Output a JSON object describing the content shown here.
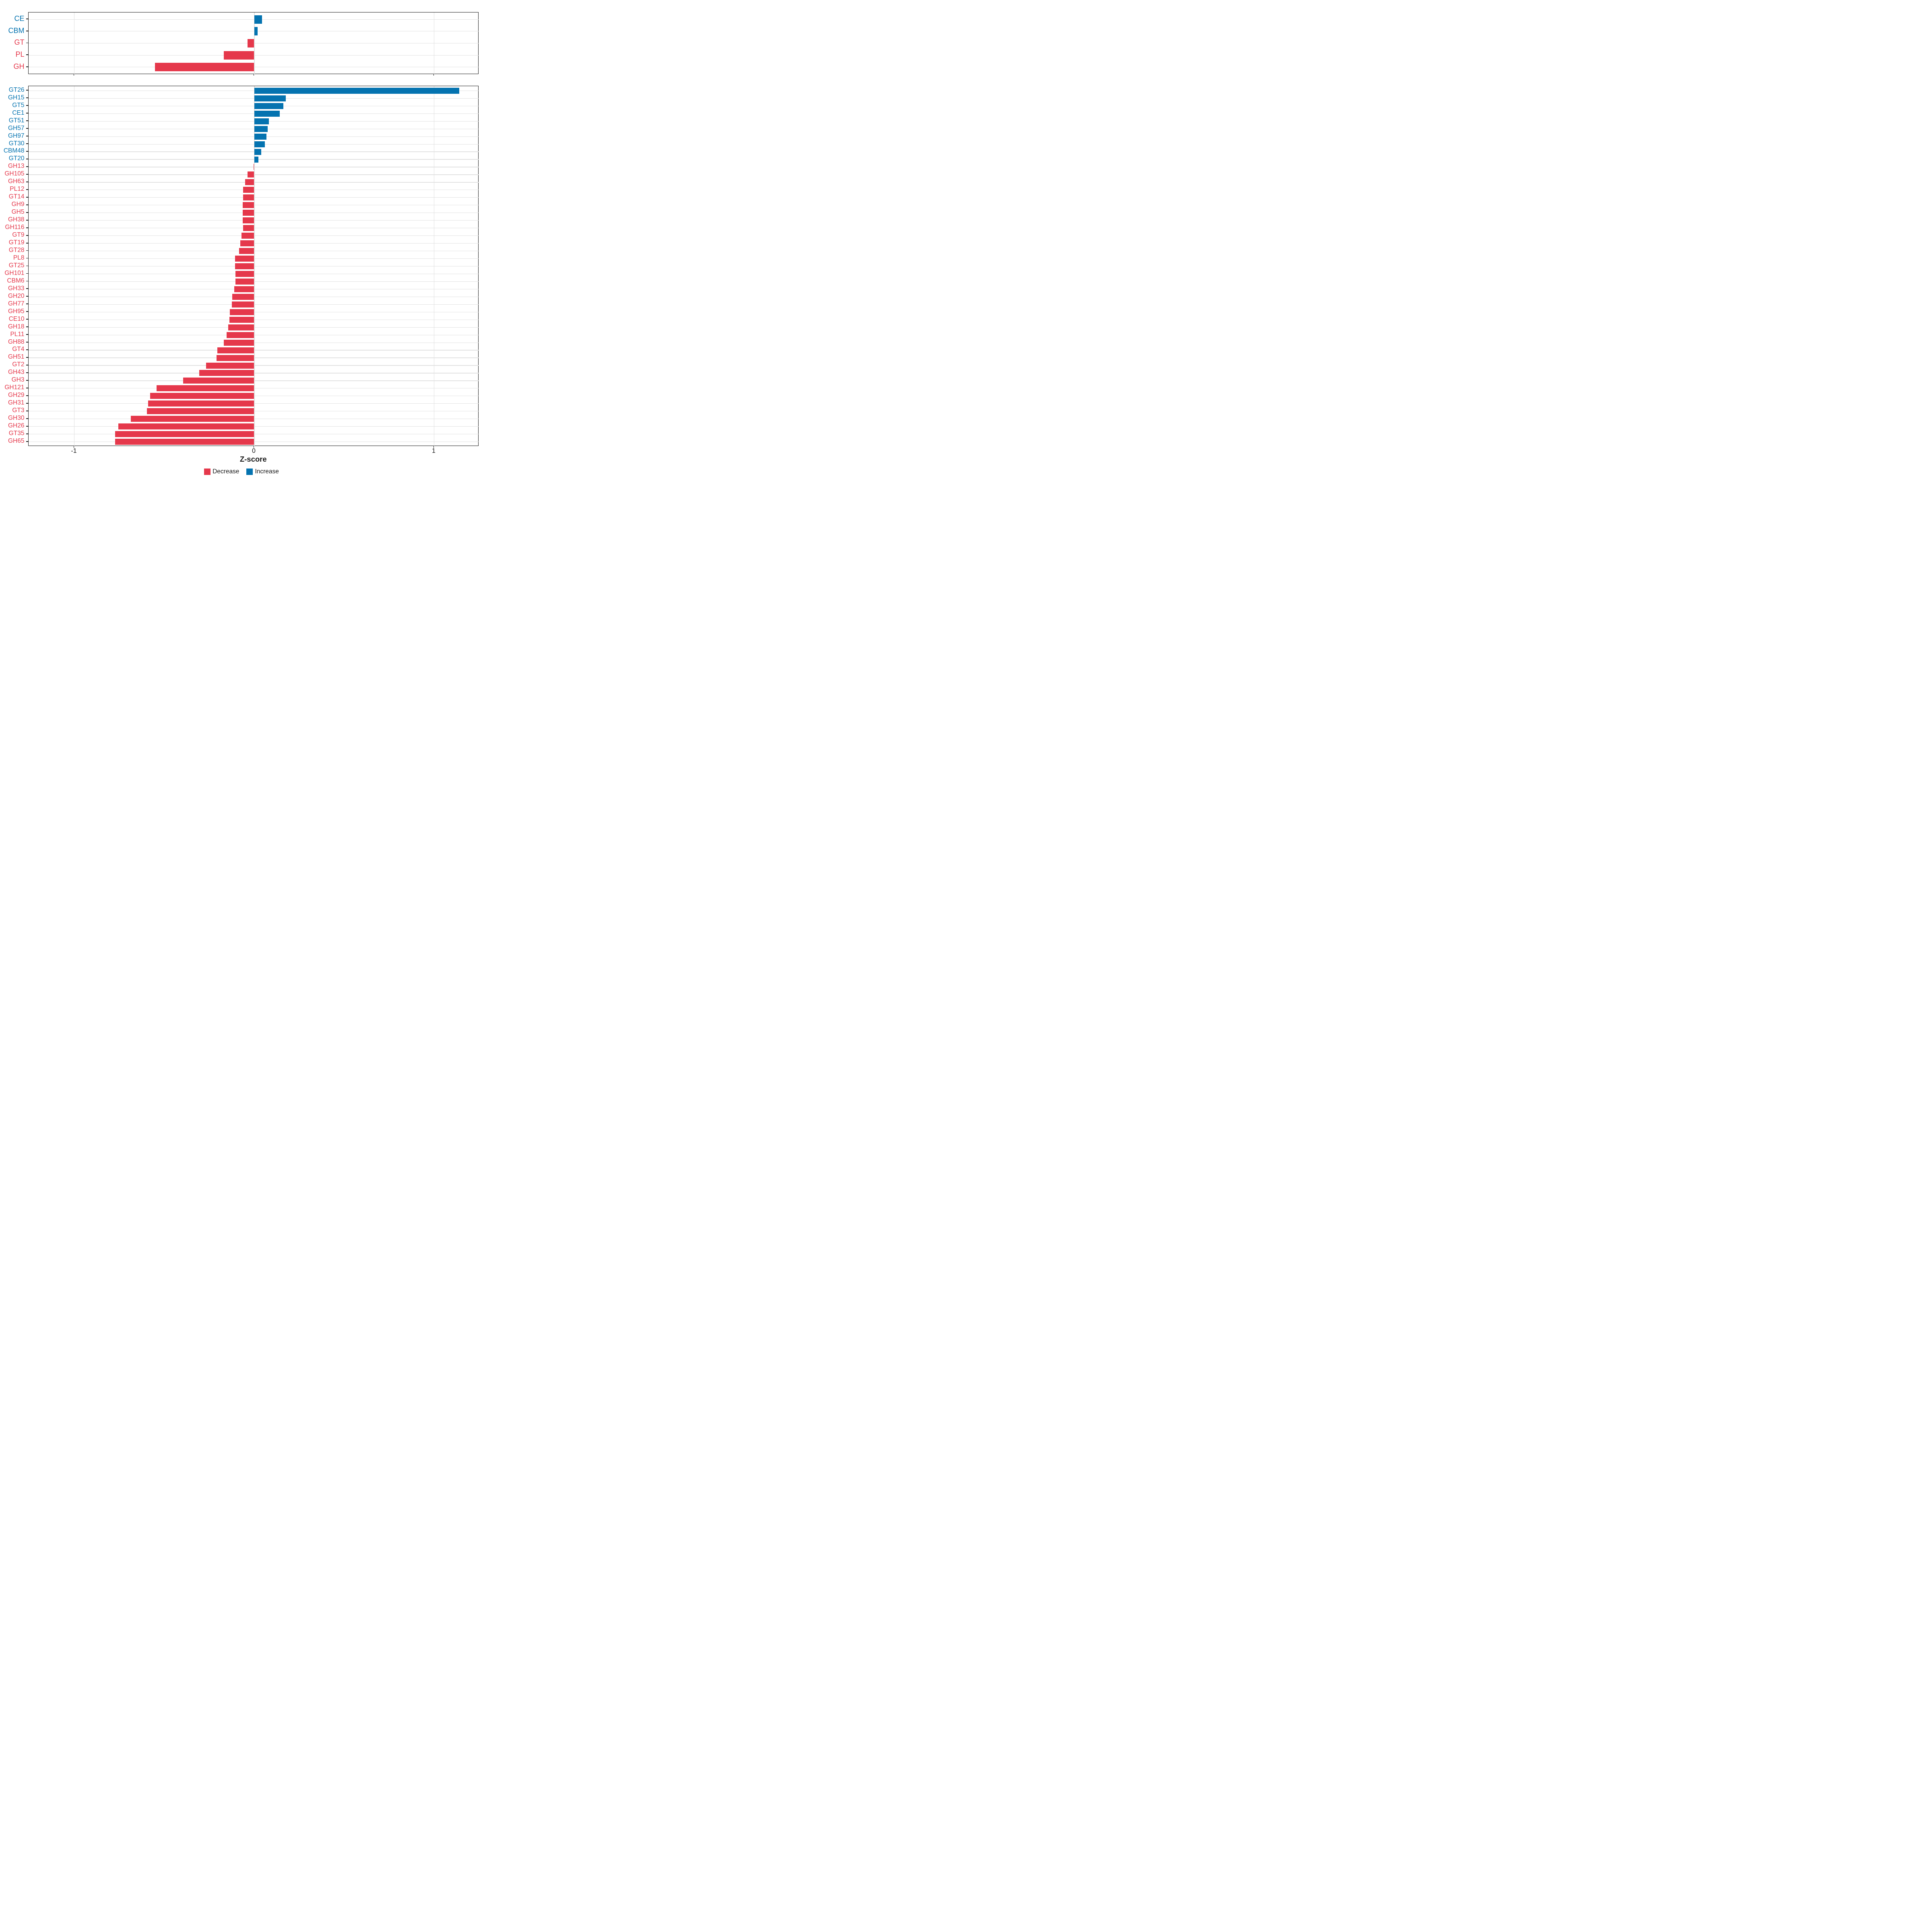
{
  "chart_data": {
    "type": "bar",
    "orientation": "horizontal",
    "xlabel": "Z-score",
    "xlim": [
      -1.25,
      1.25
    ],
    "x_ticks": [
      {
        "label": "-1",
        "value": -1
      },
      {
        "label": "0",
        "value": 0
      },
      {
        "label": "1",
        "value": 1
      }
    ],
    "grid": true,
    "legend_position": "bottom",
    "legend": [
      {
        "label": "Decrease",
        "color": "#e5384b"
      },
      {
        "label": "Increase",
        "color": "#0473b0"
      }
    ],
    "panels": [
      {
        "name": "cazyme-class-panel",
        "categories": [
          "CE",
          "CBM",
          "GT",
          "PL",
          "GH"
        ],
        "values": [
          0.043,
          0.018,
          -0.036,
          -0.17,
          -0.552
        ]
      },
      {
        "name": "cazyme-family-panel",
        "categories": [
          "GT26",
          "GH15",
          "GT5",
          "CE1",
          "GT51",
          "GH57",
          "GH97",
          "GT30",
          "CBM48",
          "GT20",
          "GH13",
          "GH105",
          "GH63",
          "PL12",
          "GT14",
          "GH9",
          "GH5",
          "GH38",
          "GH116",
          "GT9",
          "GT19",
          "GT28",
          "PL8",
          "GT25",
          "GH101",
          "CBM6",
          "GH33",
          "GH20",
          "GH77",
          "GH95",
          "CE10",
          "GH18",
          "PL11",
          "GH88",
          "GT4",
          "GH51",
          "GT2",
          "GH43",
          "GH3",
          "GH121",
          "GH29",
          "GH31",
          "GT3",
          "GH30",
          "GH26",
          "GT35",
          "GH65"
        ],
        "values": [
          1.14,
          0.175,
          0.162,
          0.141,
          0.081,
          0.076,
          0.069,
          0.06,
          0.04,
          0.023,
          -0.003,
          -0.038,
          -0.051,
          -0.062,
          -0.062,
          -0.063,
          -0.063,
          -0.063,
          -0.062,
          -0.07,
          -0.078,
          -0.083,
          -0.106,
          -0.106,
          -0.105,
          -0.105,
          -0.111,
          -0.123,
          -0.124,
          -0.135,
          -0.137,
          -0.144,
          -0.154,
          -0.17,
          -0.205,
          -0.21,
          -0.267,
          -0.306,
          -0.395,
          -0.542,
          -0.579,
          -0.589,
          -0.596,
          -0.685,
          -0.755,
          -0.772,
          -0.772
        ]
      }
    ]
  }
}
